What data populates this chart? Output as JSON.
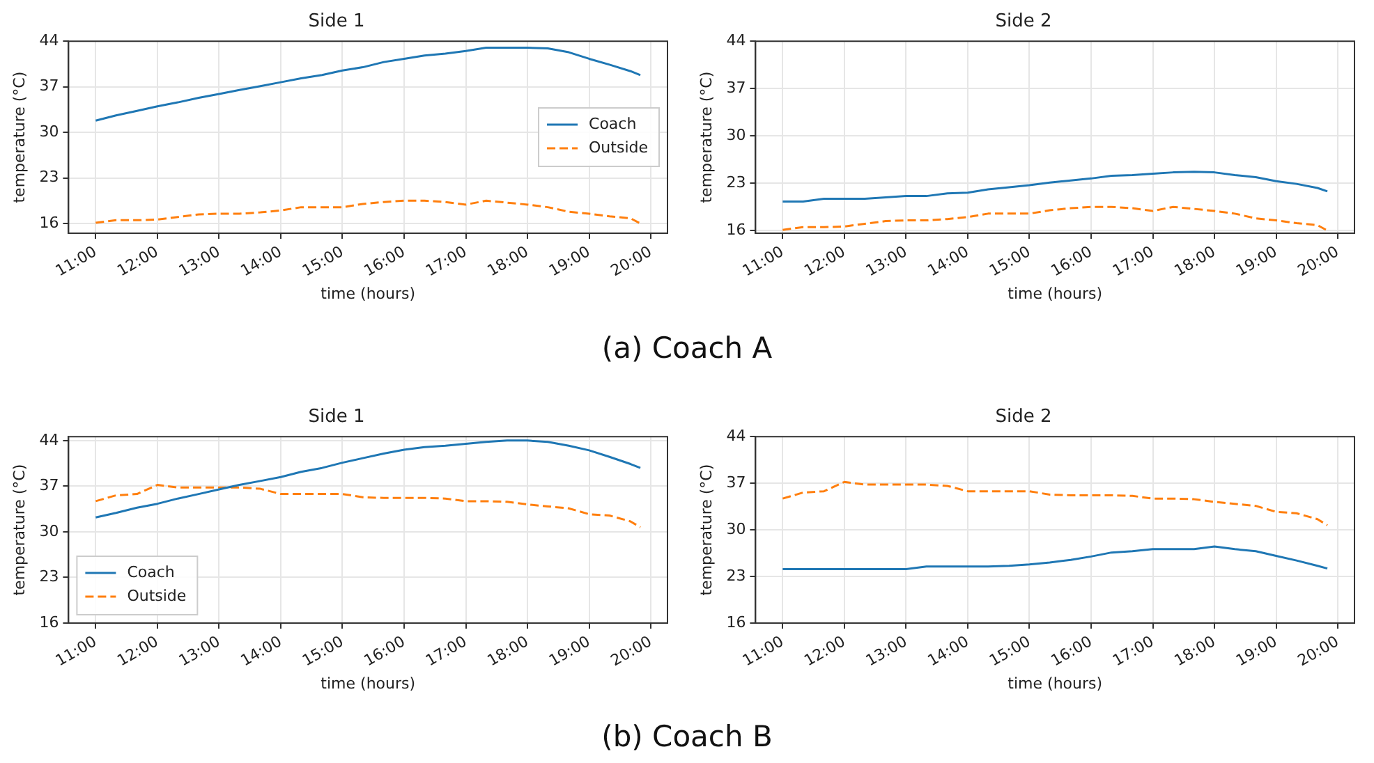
{
  "chart_data": [
    {
      "type": "line",
      "title": "Side 1",
      "xlabel": "time (hours)",
      "ylabel": "temperature (°C)",
      "xlim": [
        10.56,
        20.27
      ],
      "ylim": [
        14.5,
        44
      ],
      "xticks": [
        {
          "value": 11,
          "label": "11:00"
        },
        {
          "value": 12,
          "label": "12:00"
        },
        {
          "value": 13,
          "label": "13:00"
        },
        {
          "value": 14,
          "label": "14:00"
        },
        {
          "value": 15,
          "label": "15:00"
        },
        {
          "value": 16,
          "label": "16:00"
        },
        {
          "value": 17,
          "label": "17:00"
        },
        {
          "value": 18,
          "label": "18:00"
        },
        {
          "value": 19,
          "label": "19:00"
        },
        {
          "value": 20,
          "label": "20:00"
        }
      ],
      "yticks": [
        16,
        23,
        30,
        37,
        44
      ],
      "grid": true,
      "legend": "right",
      "marker": "none",
      "annotations": [
        "(a) Coach A"
      ],
      "x": [
        11,
        11.33,
        11.67,
        12,
        12.33,
        12.67,
        13,
        13.33,
        13.67,
        14,
        14.33,
        14.67,
        15,
        15.33,
        15.67,
        16,
        16.33,
        16.67,
        17,
        17.33,
        17.67,
        18,
        18.33,
        18.67,
        19,
        19.33,
        19.67,
        19.83
      ],
      "series": [
        {
          "name": "Coach",
          "color": "#1f77b4",
          "line_style": "solid",
          "values": [
            31.8,
            32.6,
            33.3,
            34.0,
            34.6,
            35.3,
            35.9,
            36.5,
            37.1,
            37.7,
            38.3,
            38.8,
            39.5,
            40.0,
            40.8,
            41.3,
            41.8,
            42.1,
            42.5,
            43.0,
            43.0,
            43.0,
            42.9,
            42.3,
            41.3,
            40.4,
            39.4,
            38.8
          ]
        },
        {
          "name": "Outside",
          "color": "#ff7f0e",
          "line_style": "dashed",
          "values": [
            16.1,
            16.5,
            16.5,
            16.6,
            17.0,
            17.4,
            17.5,
            17.5,
            17.7,
            18.0,
            18.5,
            18.5,
            18.5,
            19.0,
            19.3,
            19.5,
            19.5,
            19.3,
            18.9,
            19.5,
            19.2,
            18.9,
            18.5,
            17.8,
            17.5,
            17.1,
            16.8,
            16.0
          ]
        }
      ]
    },
    {
      "type": "line",
      "title": "Side 2",
      "xlabel": "time (hours)",
      "ylabel": "temperature (°C)",
      "xlim": [
        10.56,
        20.27
      ],
      "ylim": [
        15.6,
        44
      ],
      "xticks": [
        {
          "value": 11,
          "label": "11:00"
        },
        {
          "value": 12,
          "label": "12:00"
        },
        {
          "value": 13,
          "label": "13:00"
        },
        {
          "value": 14,
          "label": "14:00"
        },
        {
          "value": 15,
          "label": "15:00"
        },
        {
          "value": 16,
          "label": "16:00"
        },
        {
          "value": 17,
          "label": "17:00"
        },
        {
          "value": 18,
          "label": "18:00"
        },
        {
          "value": 19,
          "label": "19:00"
        },
        {
          "value": 20,
          "label": "20:00"
        }
      ],
      "yticks": [
        16,
        23,
        30,
        37,
        44
      ],
      "grid": true,
      "marker": "none",
      "x": [
        11,
        11.33,
        11.67,
        12,
        12.33,
        12.67,
        13,
        13.33,
        13.67,
        14,
        14.33,
        14.67,
        15,
        15.33,
        15.67,
        16,
        16.33,
        16.67,
        17,
        17.33,
        17.67,
        18,
        18.33,
        18.67,
        19,
        19.33,
        19.67,
        19.83
      ],
      "series": [
        {
          "color": "#1f77b4",
          "line_style": "solid",
          "values": [
            20.3,
            20.3,
            20.7,
            20.7,
            20.7,
            20.9,
            21.1,
            21.1,
            21.5,
            21.6,
            22.1,
            22.4,
            22.7,
            23.1,
            23.4,
            23.7,
            24.1,
            24.2,
            24.4,
            24.6,
            24.7,
            24.6,
            24.2,
            23.9,
            23.3,
            22.9,
            22.3,
            21.8
          ]
        },
        {
          "color": "#ff7f0e",
          "line_style": "dashed",
          "values": [
            16.1,
            16.5,
            16.5,
            16.6,
            17.0,
            17.4,
            17.5,
            17.5,
            17.7,
            18.0,
            18.5,
            18.5,
            18.5,
            19.0,
            19.3,
            19.5,
            19.5,
            19.3,
            18.9,
            19.5,
            19.2,
            18.9,
            18.5,
            17.8,
            17.5,
            17.1,
            16.8,
            16.0
          ]
        }
      ]
    },
    {
      "type": "line",
      "title": "Side 1",
      "xlabel": "time (hours)",
      "ylabel": "temperature (°C)",
      "xlim": [
        10.56,
        20.27
      ],
      "ylim": [
        16,
        44.6
      ],
      "xticks": [
        {
          "value": 11,
          "label": "11:00"
        },
        {
          "value": 12,
          "label": "12:00"
        },
        {
          "value": 13,
          "label": "13:00"
        },
        {
          "value": 14,
          "label": "14:00"
        },
        {
          "value": 15,
          "label": "15:00"
        },
        {
          "value": 16,
          "label": "16:00"
        },
        {
          "value": 17,
          "label": "17:00"
        },
        {
          "value": 18,
          "label": "18:00"
        },
        {
          "value": 19,
          "label": "19:00"
        },
        {
          "value": 20,
          "label": "20:00"
        }
      ],
      "yticks": [
        16,
        23,
        30,
        37,
        44
      ],
      "grid": true,
      "legend": "bottom left",
      "marker": "none",
      "annotations": [
        "(b) Coach B"
      ],
      "x": [
        11,
        11.33,
        11.67,
        12,
        12.33,
        12.67,
        13,
        13.33,
        13.67,
        14,
        14.33,
        14.67,
        15,
        15.33,
        15.67,
        16,
        16.33,
        16.67,
        17,
        17.33,
        17.67,
        18,
        18.33,
        18.67,
        19,
        19.33,
        19.67,
        19.83
      ],
      "series": [
        {
          "name": "Coach",
          "color": "#1f77b4",
          "line_style": "solid",
          "values": [
            32.2,
            32.9,
            33.7,
            34.3,
            35.1,
            35.8,
            36.5,
            37.2,
            37.8,
            38.4,
            39.2,
            39.8,
            40.6,
            41.3,
            42.0,
            42.6,
            43.0,
            43.2,
            43.5,
            43.8,
            44.0,
            44.0,
            43.8,
            43.2,
            42.5,
            41.5,
            40.4,
            39.8
          ]
        },
        {
          "name": "Outside",
          "color": "#ff7f0e",
          "line_style": "dashed",
          "values": [
            34.7,
            35.6,
            35.8,
            37.2,
            36.8,
            36.8,
            36.8,
            36.8,
            36.6,
            35.8,
            35.8,
            35.8,
            35.8,
            35.3,
            35.2,
            35.2,
            35.2,
            35.1,
            34.7,
            34.7,
            34.6,
            34.2,
            33.9,
            33.6,
            32.7,
            32.5,
            31.6,
            30.7
          ]
        }
      ]
    },
    {
      "type": "line",
      "title": "Side 2",
      "xlabel": "time (hours)",
      "ylabel": "temperature (°C)",
      "xlim": [
        10.56,
        20.27
      ],
      "ylim": [
        16,
        44
      ],
      "xticks": [
        {
          "value": 11,
          "label": "11:00"
        },
        {
          "value": 12,
          "label": "12:00"
        },
        {
          "value": 13,
          "label": "13:00"
        },
        {
          "value": 14,
          "label": "14:00"
        },
        {
          "value": 15,
          "label": "15:00"
        },
        {
          "value": 16,
          "label": "16:00"
        },
        {
          "value": 17,
          "label": "17:00"
        },
        {
          "value": 18,
          "label": "18:00"
        },
        {
          "value": 19,
          "label": "19:00"
        },
        {
          "value": 20,
          "label": "20:00"
        }
      ],
      "yticks": [
        16,
        23,
        30,
        37,
        44
      ],
      "grid": true,
      "marker": "none",
      "x": [
        11,
        11.33,
        11.67,
        12,
        12.33,
        12.67,
        13,
        13.33,
        13.67,
        14,
        14.33,
        14.67,
        15,
        15.33,
        15.67,
        16,
        16.33,
        16.67,
        17,
        17.33,
        17.67,
        18,
        18.33,
        18.67,
        19,
        19.33,
        19.67,
        19.83
      ],
      "series": [
        {
          "color": "#1f77b4",
          "line_style": "solid",
          "values": [
            24.1,
            24.1,
            24.1,
            24.1,
            24.1,
            24.1,
            24.1,
            24.5,
            24.5,
            24.5,
            24.5,
            24.6,
            24.8,
            25.1,
            25.5,
            26.0,
            26.6,
            26.8,
            27.1,
            27.1,
            27.1,
            27.5,
            27.1,
            26.8,
            26.1,
            25.4,
            24.6,
            24.2
          ]
        },
        {
          "color": "#ff7f0e",
          "line_style": "dashed",
          "values": [
            34.7,
            35.6,
            35.8,
            37.2,
            36.8,
            36.8,
            36.8,
            36.8,
            36.6,
            35.8,
            35.8,
            35.8,
            35.8,
            35.3,
            35.2,
            35.2,
            35.2,
            35.1,
            34.7,
            34.7,
            34.6,
            34.2,
            33.9,
            33.6,
            32.7,
            32.5,
            31.6,
            30.7
          ]
        }
      ]
    }
  ]
}
